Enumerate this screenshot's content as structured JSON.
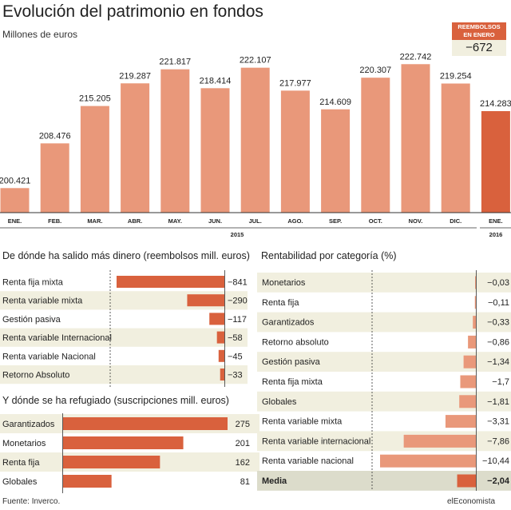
{
  "title": "Evolución del patrimonio en fondos",
  "subtitle": "Millones de euros",
  "reembolsos": {
    "label_line1": "REEMBOLSOS",
    "label_line2": "EN ENERO",
    "value": "−672"
  },
  "colors": {
    "bar": "#e9987a",
    "bar_highlight": "#d9613d",
    "shade": "#f1efdf",
    "text": "#222222"
  },
  "chart_data": [
    {
      "type": "bar",
      "title": "Evolución del patrimonio en fondos",
      "subtitle": "Millones de euros",
      "categories": [
        "ENE.",
        "FEB.",
        "MAR.",
        "ABR.",
        "MAY.",
        "JUN.",
        "JUL.",
        "AGO.",
        "SEP.",
        "OCT.",
        "NOV.",
        "DIC.",
        "ENE."
      ],
      "values": [
        200421,
        208476,
        215205,
        219287,
        221817,
        218414,
        222107,
        217977,
        214609,
        220307,
        222742,
        219254,
        214283
      ],
      "value_labels": [
        "200.421",
        "208.476",
        "215.205",
        "219.287",
        "221.817",
        "218.414",
        "222.107",
        "217.977",
        "214.609",
        "220.307",
        "222.742",
        "219.254",
        "214.283"
      ],
      "year_labels": [
        "2015",
        "2016"
      ],
      "highlight_index": 12,
      "grid": false
    },
    {
      "type": "bar",
      "orientation": "horizontal",
      "title": "De dónde ha salido más dinero (reembolsos mill. euros)",
      "categories": [
        "Renta fija mixta",
        "Renta variable mixta",
        "Gestión pasiva",
        "Renta variable Internacional",
        "Renta variable Nacional",
        "Retorno Absoluto"
      ],
      "values": [
        -841,
        -290,
        -117,
        -58,
        -45,
        -33
      ],
      "value_labels": [
        "−841",
        "−290",
        "−117",
        "−58",
        "−45",
        "−33"
      ]
    },
    {
      "type": "bar",
      "orientation": "horizontal",
      "title": "Y dónde se ha refugiado (suscripciones mill. euros)",
      "categories": [
        "Garantizados",
        "Monetarios",
        "Renta fija",
        "Globales"
      ],
      "values": [
        275,
        201,
        162,
        81
      ],
      "value_labels": [
        "275",
        "201",
        "162",
        "81"
      ]
    },
    {
      "type": "bar",
      "orientation": "horizontal",
      "title": "Rentabilidad por categoría (%)",
      "categories": [
        "Monetarios",
        "Renta fija",
        "Garantizados",
        "Retorno absoluto",
        "Gestión pasiva",
        "Renta fija mixta",
        "Globales",
        "Renta  variable mixta",
        "Renta variable internacional",
        "Renta variable nacional",
        "Media"
      ],
      "values": [
        -0.03,
        -0.11,
        -0.33,
        -0.86,
        -1.34,
        -1.7,
        -1.81,
        -3.31,
        -7.86,
        -10.44,
        -2.04
      ],
      "value_labels": [
        "−0,03",
        "−0,11",
        "−0,33",
        "−0,86",
        "−1,34",
        "−1,7",
        "−1,81",
        "−3,31",
        "−7,86",
        "−10,44",
        "−2,04"
      ],
      "highlight_index": 10
    }
  ],
  "source": "Fuente: Inverco.",
  "brand": "elEconomista"
}
